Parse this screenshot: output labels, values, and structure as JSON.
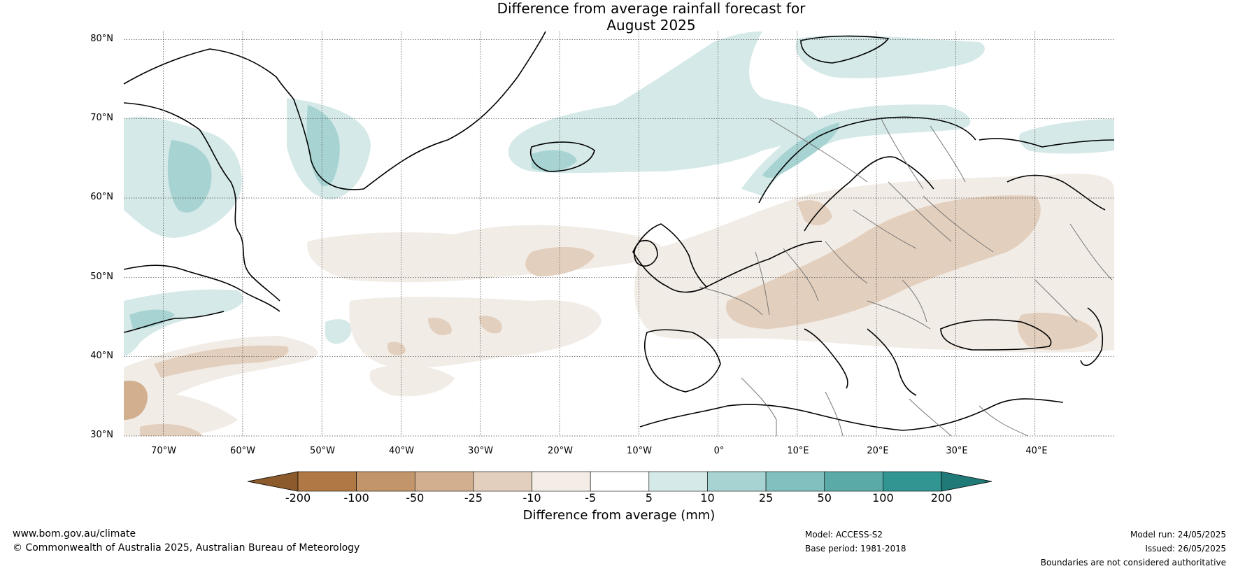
{
  "title": {
    "line1": "Difference from average rainfall forecast for",
    "line2": "August 2025"
  },
  "map": {
    "lat_labels": [
      "80°N",
      "70°N",
      "60°N",
      "50°N",
      "40°N",
      "30°N"
    ],
    "lon_labels": [
      "70°W",
      "60°W",
      "50°W",
      "40°W",
      "30°W",
      "20°W",
      "10°W",
      "0°",
      "10°E",
      "20°E",
      "30°E",
      "40°E"
    ],
    "extent": {
      "lon_min": -75,
      "lon_max": 50,
      "lat_min": 30,
      "lat_max": 81
    },
    "colors": {
      "ocean": "#ffffff",
      "land_line": "#000000",
      "border_line": "#777777",
      "wet_light": "#d4e9e8",
      "wet_mid": "#a7d3d2",
      "dry_light": "#f2ece6",
      "dry_mid": "#e3cfbd",
      "dry_strong": "#d2b08f"
    }
  },
  "colorbar": {
    "tick_labels": [
      "-200",
      "-100",
      "-50",
      "-25",
      "-10",
      "-5",
      "5",
      "10",
      "25",
      "50",
      "100",
      "200"
    ],
    "colors": [
      "#8c5a2b",
      "#b07845",
      "#c2956a",
      "#d2b08f",
      "#e3cfbd",
      "#f4ede7",
      "#ffffff",
      "#d4e9e8",
      "#a7d3d2",
      "#80c1bf",
      "#5aaaa8",
      "#319592",
      "#1f7a78"
    ],
    "label": "Difference from average (mm)"
  },
  "footer": {
    "website": "www.bom.gov.au/climate",
    "copyright": "© Commonwealth of Australia 2025, Australian Bureau of Meteorology",
    "model": "Model: ACCESS-S2",
    "base_period": "Base period: 1981-2018",
    "model_run": "Model run: 24/05/2025",
    "issued": "Issued: 26/05/2025",
    "disclaimer": "Boundaries are not considered authoritative"
  }
}
